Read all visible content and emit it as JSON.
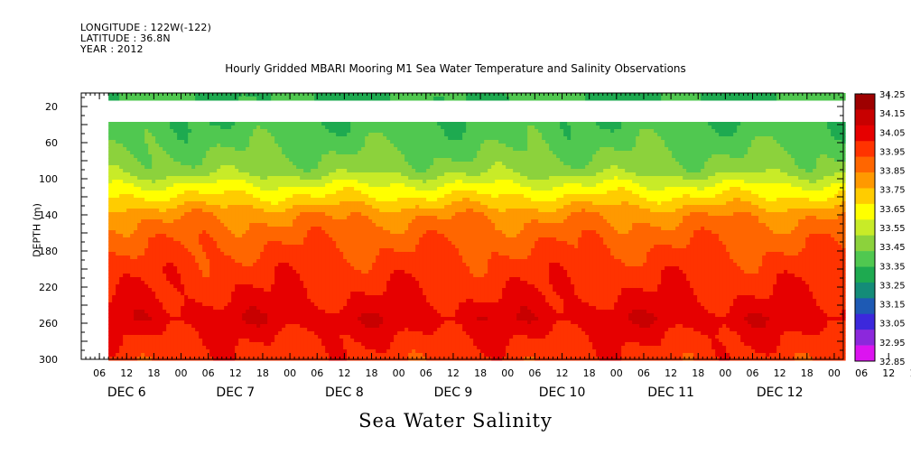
{
  "header": {
    "longitude": "LONGITUDE : 122W(-122)",
    "latitude": "LATITUDE : 36.8N",
    "year": "YEAR : 2012"
  },
  "chart_data": {
    "type": "heatmap",
    "title": "Hourly Gridded MBARI Mooring M1 Sea Water Temperature and Salinity Observations",
    "xlabel": "Sea Water Salinity",
    "ylabel": "DEPTH (m)",
    "y_range": [
      300,
      5
    ],
    "y_ticks": [
      20,
      60,
      100,
      140,
      180,
      220,
      260,
      300
    ],
    "x_start_hour": 2,
    "x_end_hour": 170,
    "data_start_hour": 8,
    "x_hour_ticks": [
      "06",
      "12",
      "18",
      "00",
      "06",
      "12",
      "18",
      "00",
      "06",
      "12",
      "18",
      "00",
      "06",
      "12",
      "18",
      "00",
      "06",
      "12",
      "18",
      "00",
      "06",
      "12",
      "18",
      "00",
      "06",
      "12",
      "18",
      "00",
      "06",
      "12",
      "18",
      "00"
    ],
    "x_day_labels": [
      "DEC  6",
      "DEC  7",
      "DEC  8",
      "DEC  9",
      "DEC 10",
      "DEC 11",
      "DEC 12"
    ],
    "missing_depth_band": [
      13,
      37
    ],
    "colorbar_levels": [
      "34.25",
      "34.15",
      "34.05",
      "33.95",
      "33.85",
      "33.75",
      "33.65",
      "33.55",
      "33.45",
      "33.35",
      "33.25",
      "33.15",
      "33.05",
      "32.95",
      "32.85"
    ],
    "colorbar_colors": [
      "#9e0000",
      "#c80000",
      "#e60000",
      "#ff3300",
      "#ff6600",
      "#ff9900",
      "#ffcc00",
      "#ffff00",
      "#c8eb28",
      "#8cd23c",
      "#50c850",
      "#1eaa50",
      "#148c78",
      "#1e5ab4",
      "#3c28dc",
      "#8c28dc",
      "#dc14f0"
    ],
    "data_profile": [
      {
        "depth": 5,
        "salinity": 33.35
      },
      {
        "depth": 12,
        "salinity": 33.35
      },
      {
        "depth": 37,
        "salinity": 33.37
      },
      {
        "depth": 60,
        "salinity": 33.42
      },
      {
        "depth": 90,
        "salinity": 33.5
      },
      {
        "depth": 110,
        "salinity": 33.68
      },
      {
        "depth": 125,
        "salinity": 33.8
      },
      {
        "depth": 140,
        "salinity": 33.93
      },
      {
        "depth": 165,
        "salinity": 34.02
      },
      {
        "depth": 200,
        "salinity": 34.1
      },
      {
        "depth": 235,
        "salinity": 34.16
      },
      {
        "depth": 255,
        "salinity": 34.22
      },
      {
        "depth": 275,
        "salinity": 34.15
      },
      {
        "depth": 300,
        "salinity": 34.1
      }
    ]
  }
}
